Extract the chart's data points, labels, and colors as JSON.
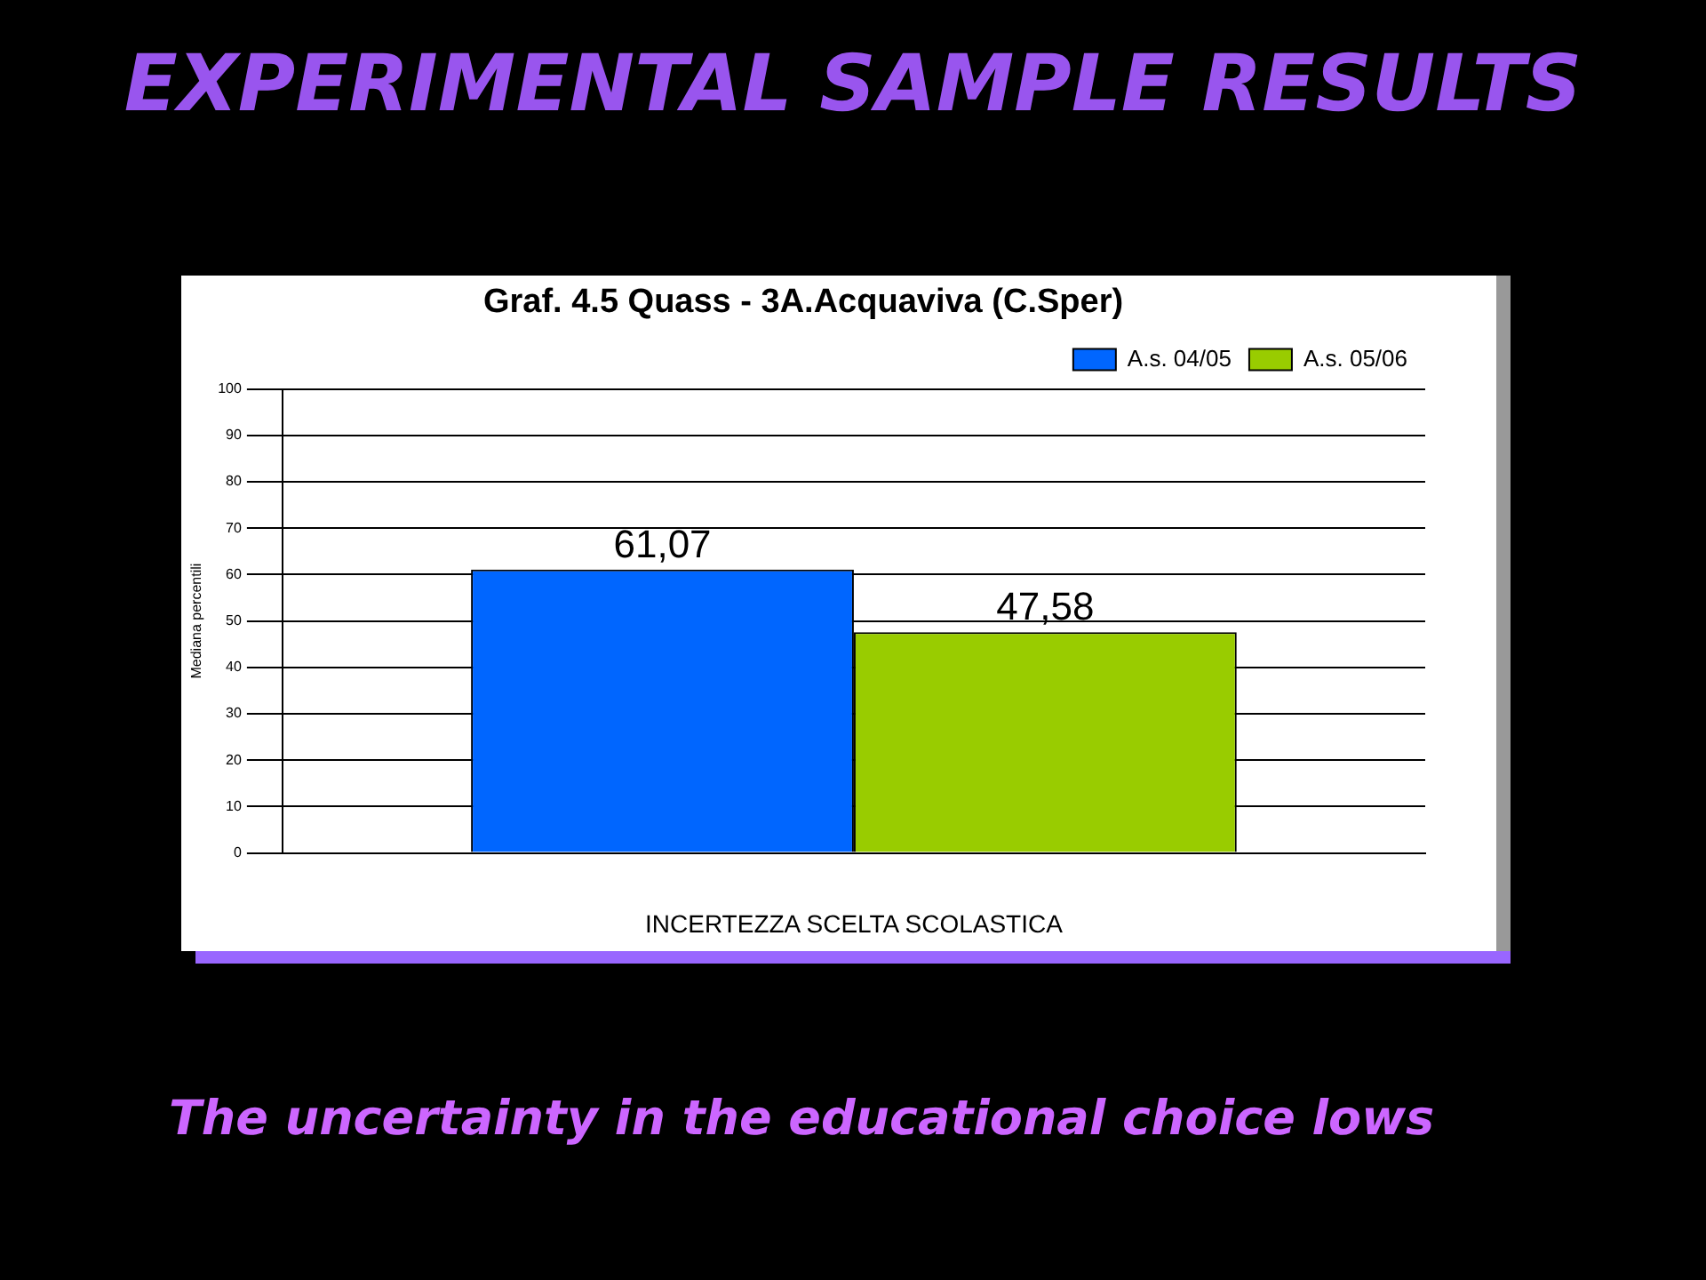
{
  "chart_data": {
    "type": "bar",
    "title": "EXPERIMENTAL SAMPLE RESULTS",
    "subtitle": "Graf. 4.5 Quass - 3A.Acquaviva (C.Sper)",
    "xlabel": "INCERTEZZA SCELTA SCOLASTICA",
    "ylabel": "Mediana percentili",
    "categories": [
      null
    ],
    "series": [
      {
        "name": "A.s. 04/05",
        "color": "#0066ff",
        "values": [
          61.07
        ],
        "value_labels": [
          "61,07"
        ]
      },
      {
        "name": "A.s. 05/06",
        "color": "#99cc00",
        "values": [
          47.58
        ],
        "value_labels": [
          "47,58"
        ]
      }
    ],
    "ylim": [
      0,
      100
    ],
    "yticks": [
      0,
      10,
      20,
      30,
      40,
      50,
      60,
      70,
      80,
      90,
      100
    ],
    "grid": "y",
    "legend": "top right",
    "annotations": [
      "The uncertainty in the educational choice lows"
    ]
  }
}
